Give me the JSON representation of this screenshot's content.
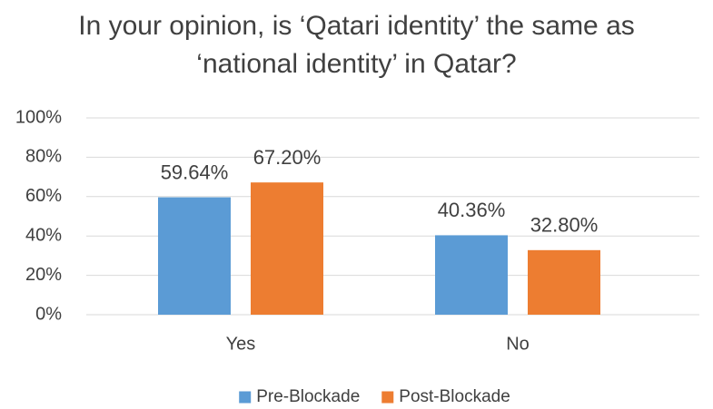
{
  "chart_data": {
    "type": "bar",
    "title": "In your opinion, is ‘Qatari identity’ the same as ‘national identity’ in Qatar?",
    "categories": [
      "Yes",
      "No"
    ],
    "series": [
      {
        "name": "Pre-Blockade",
        "color": "#5b9bd5",
        "values": [
          59.64,
          40.36
        ],
        "value_labels": [
          "59.64%",
          "40.36%"
        ]
      },
      {
        "name": "Post-Blockade",
        "color": "#ed7d31",
        "values": [
          67.2,
          32.8
        ],
        "value_labels": [
          "67.20%",
          "32.80%"
        ]
      }
    ],
    "ylim": [
      0,
      100
    ],
    "yticks": [
      {
        "value": 0,
        "label": "0%"
      },
      {
        "value": 20,
        "label": "20%"
      },
      {
        "value": 40,
        "label": "40%"
      },
      {
        "value": 60,
        "label": "60%"
      },
      {
        "value": 80,
        "label": "80%"
      },
      {
        "value": 100,
        "label": "100%"
      }
    ],
    "grid": true,
    "legend": "bottom"
  }
}
